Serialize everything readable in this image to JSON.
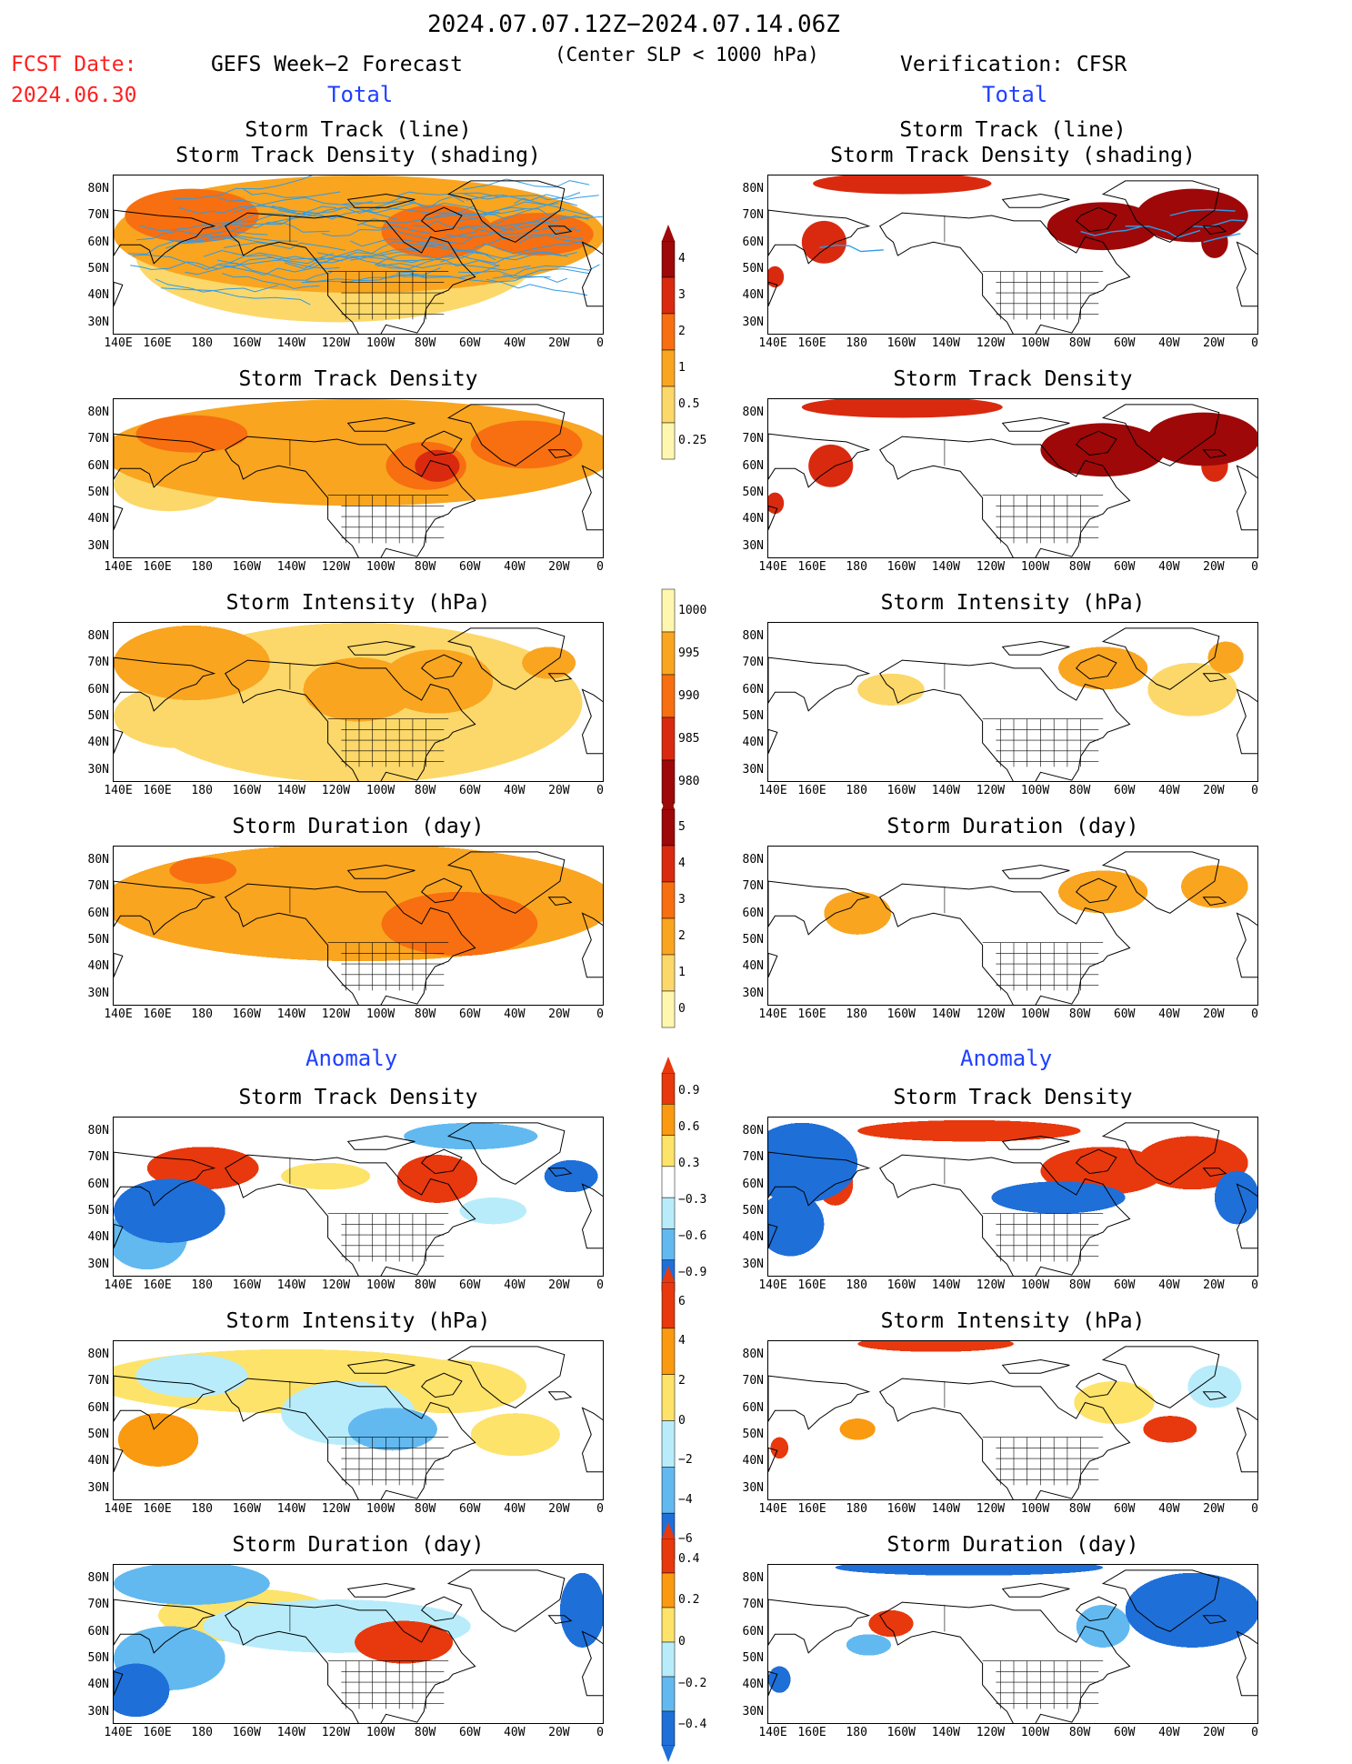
{
  "header": {
    "period": "2024.07.07.12Z−2024.07.14.06Z",
    "criterion": "(Center SLP < 1000 hPa)",
    "fcst_label": "FCST Date:",
    "fcst_date": "2024.06.30",
    "left_title": "GEFS Week−2 Forecast",
    "right_title": "Verification: CFSR",
    "total_label": "Total",
    "anomaly_label": "Anomaly"
  },
  "panel_titles": {
    "track_line": "Storm Track (line)",
    "track_density_shading": "Storm Track Density (shading)",
    "track_density": "Storm Track Density",
    "intensity": "Storm Intensity (hPa)",
    "duration": "Storm Duration (day)"
  },
  "axes": {
    "lat_labels": [
      "80N",
      "70N",
      "60N",
      "50N",
      "40N",
      "30N"
    ],
    "lon_labels": [
      "140E",
      "160E",
      "180",
      "160W",
      "140W",
      "120W",
      "100W",
      "80W",
      "60W",
      "40W",
      "20W",
      "0"
    ]
  },
  "colorbars": {
    "density": [
      "4",
      "3",
      "2",
      "1",
      "0.5",
      "0.25"
    ],
    "intensity": [
      "1000",
      "995",
      "990",
      "985",
      "980"
    ],
    "duration": [
      "5",
      "4",
      "3",
      "2",
      "1",
      "0"
    ],
    "density_anom": [
      "0.9",
      "0.6",
      "0.3",
      "−0.3",
      "−0.6",
      "−0.9"
    ],
    "intensity_anom": [
      "6",
      "4",
      "2",
      "0",
      "−2",
      "−4",
      "−6"
    ],
    "duration_anom": [
      "0.4",
      "0.2",
      "0",
      "−0.2",
      "−0.4"
    ]
  },
  "colors": {
    "seq": [
      "#fff7b0",
      "#fcd86a",
      "#f9a520",
      "#f76f10",
      "#d92a10",
      "#9e0808"
    ],
    "div_pos": [
      "#fde36a",
      "#f99a10",
      "#e8380e"
    ],
    "div_neg": [
      "#b8ecfb",
      "#62b9f0",
      "#1f6fd8"
    ],
    "track": "#2f9be8"
  }
}
